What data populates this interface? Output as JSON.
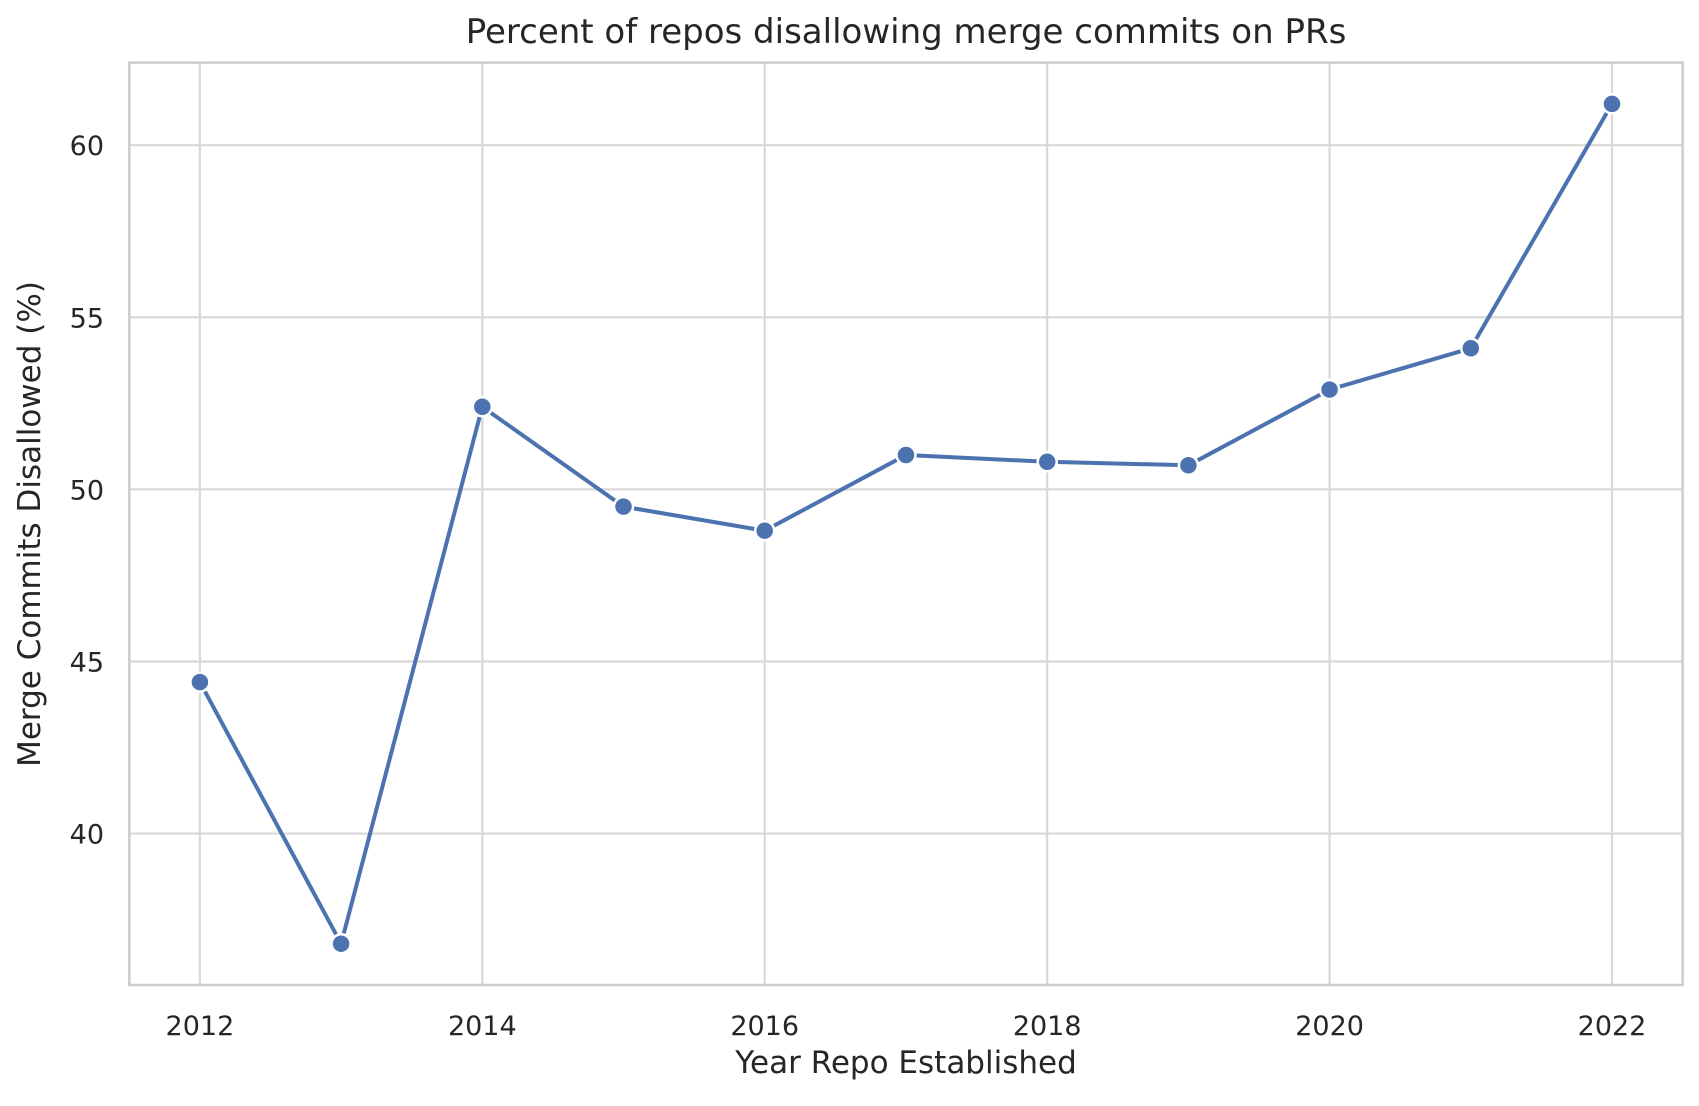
{
  "chart_data": {
    "type": "line",
    "title": "Percent of repos disallowing merge commits on PRs",
    "xlabel": "Year Repo Established",
    "ylabel": "Merge Commits Disallowed (%)",
    "x": [
      2012,
      2013,
      2014,
      2015,
      2016,
      2017,
      2018,
      2019,
      2020,
      2021,
      2022
    ],
    "values": [
      44.4,
      36.8,
      52.4,
      49.5,
      48.8,
      51.0,
      50.8,
      50.7,
      52.9,
      54.1,
      61.2
    ],
    "xticks": [
      2012,
      2014,
      2016,
      2018,
      2020,
      2022
    ],
    "yticks": [
      40,
      45,
      50,
      55,
      60
    ],
    "xlim": [
      2011.5,
      2022.5
    ],
    "ylim": [
      35.6,
      62.4
    ],
    "grid": true,
    "legend_visible": false,
    "marker": "circle",
    "colors": {
      "line": "#4C72B0",
      "marker_fill": "#4C72B0",
      "marker_edge": "#FFFFFF",
      "grid": "#D8D8D8",
      "spine": "#CCCCCC",
      "text": "#262626",
      "background": "#FFFFFF"
    }
  }
}
